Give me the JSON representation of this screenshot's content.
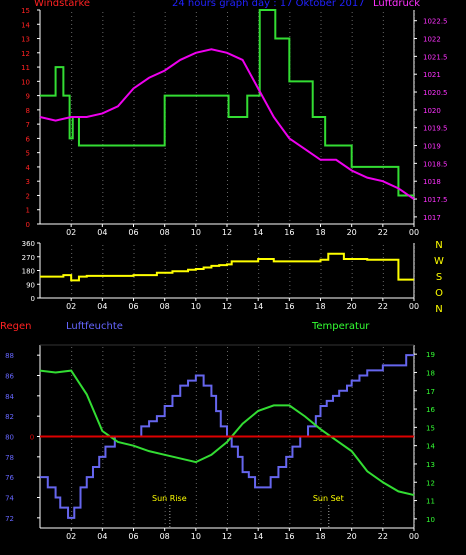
{
  "header": {
    "wind_label": "Windstärke",
    "title": "24 hours graph day : 17 Oktober 2017",
    "pressure_label": "Luftdruck"
  },
  "mid_header": {
    "rain_label": "Regen",
    "humidity_label": "Luftfeuchte",
    "temp_label": "Temperatur"
  },
  "colors": {
    "background": "#000000",
    "axis": "#ffffff",
    "wind_speed": "#33dd33",
    "pressure": "#ee00ee",
    "wind_dir": "#ffff00",
    "humidity": "#6666ee",
    "temperature": "#33dd33",
    "rain": "#dd0000",
    "wind_axis_text": "#ff2222",
    "pressure_axis_text": "#ff33ff",
    "title_text": "#2222ff",
    "direction_text": "#ffff00",
    "humidity_axis_text": "#6666ff",
    "temp_axis_text": "#33ff33"
  },
  "chart_data": [
    {
      "type": "line",
      "title": "24 hours graph day : 17 Oktober 2017",
      "x_ticks": [
        "02",
        "04",
        "06",
        "08",
        "10",
        "12",
        "14",
        "16",
        "18",
        "20",
        "22",
        "00"
      ],
      "xlim": [
        0,
        24
      ],
      "y_left_label": "Windstärke",
      "y_left_ticks": [
        "0",
        "1",
        "2",
        "3",
        "4",
        "5",
        "6",
        "7",
        "8",
        "9",
        "10",
        "11",
        "12",
        "13",
        "14",
        "15"
      ],
      "y_left_lim": [
        0,
        15
      ],
      "y_right_label": "Luftdruck",
      "y_right_ticks": [
        "1017",
        "1017.5",
        "1018",
        "1018.5",
        "1019",
        "1019.5",
        "1020",
        "1020.5",
        "1021",
        "1021.5",
        "1022",
        "1022.5"
      ],
      "y_right_lim": [
        1016.8,
        1022.8
      ],
      "series": [
        {
          "name": "Windstärke",
          "axis": "left",
          "step": true,
          "x": [
            0,
            1,
            1.5,
            1.9,
            2.1,
            2.5,
            7.9,
            8.0,
            10.5,
            10.6,
            12.0,
            12.1,
            13.0,
            13.3,
            14.0,
            14.1,
            15.0,
            15.1,
            15.8,
            16.0,
            17.2,
            17.5,
            18.0,
            18.3,
            20.0,
            21.0,
            22.3,
            23.0,
            24
          ],
          "y": [
            9,
            11,
            9,
            6,
            7.5,
            5.5,
            5.5,
            9,
            9,
            9,
            9,
            7.5,
            7.5,
            9,
            9,
            15,
            15,
            13,
            13,
            10,
            10,
            7.5,
            7.5,
            5.5,
            4,
            4,
            4,
            2,
            2
          ]
        },
        {
          "name": "Luftdruck",
          "axis": "right",
          "x": [
            0,
            1,
            2,
            3,
            4,
            5,
            6,
            7,
            8,
            9,
            10,
            11,
            12,
            13,
            14,
            15,
            16,
            17,
            18,
            19,
            20,
            21,
            22,
            23,
            24
          ],
          "y": [
            1019.8,
            1019.7,
            1019.8,
            1019.8,
            1019.9,
            1020.1,
            1020.6,
            1020.9,
            1021.1,
            1021.4,
            1021.6,
            1021.7,
            1021.6,
            1021.4,
            1020.6,
            1019.8,
            1019.2,
            1018.9,
            1018.6,
            1018.6,
            1018.3,
            1018.1,
            1018.0,
            1017.8,
            1017.5
          ]
        }
      ]
    },
    {
      "type": "line",
      "x_ticks": [
        "02",
        "04",
        "06",
        "08",
        "10",
        "12",
        "14",
        "16",
        "18",
        "20",
        "22",
        "00"
      ],
      "xlim": [
        0,
        24
      ],
      "y_left_ticks": [
        "0",
        "90",
        "180",
        "270",
        "360"
      ],
      "y_left_lim": [
        0,
        360
      ],
      "direction_labels": [
        "N",
        "W",
        "S",
        "O",
        "N"
      ],
      "series": [
        {
          "name": "Wind direction",
          "step": true,
          "x": [
            0,
            1.5,
            2,
            2.5,
            3,
            6,
            7.5,
            8.5,
            9.5,
            10,
            10.5,
            11,
            11.5,
            12,
            12.3,
            13,
            14,
            15,
            16,
            17,
            18,
            18.5,
            19.5,
            21,
            22.5,
            23,
            24
          ],
          "y": [
            140,
            150,
            115,
            140,
            145,
            150,
            165,
            175,
            185,
            190,
            200,
            210,
            215,
            220,
            240,
            240,
            255,
            240,
            240,
            240,
            250,
            290,
            255,
            250,
            250,
            120,
            120
          ]
        }
      ]
    },
    {
      "type": "line",
      "x_ticks": [
        "02",
        "04",
        "06",
        "08",
        "10",
        "12",
        "14",
        "16",
        "18",
        "20",
        "22",
        "00"
      ],
      "xlim": [
        0,
        24
      ],
      "y_left_label": "Luftfeuchte",
      "y_left_ticks": [
        "72",
        "74",
        "76",
        "78",
        "80",
        "82",
        "84",
        "86",
        "88"
      ],
      "y_left_lim": [
        71,
        89
      ],
      "y_right_label": "Temperatur",
      "y_right_ticks": [
        "10",
        "11",
        "12",
        "13",
        "14",
        "15",
        "16",
        "17",
        "18",
        "19"
      ],
      "y_right_lim": [
        9.5,
        19.5
      ],
      "rain_label": "Regen",
      "rain_marker": "0",
      "annotations": [
        {
          "text": "Sun Rise",
          "x": 8.3
        },
        {
          "text": "Sun Set",
          "x": 18.5
        }
      ],
      "series": [
        {
          "name": "Luftfeuchte",
          "axis": "left",
          "step": true,
          "x": [
            0,
            0.5,
            1.0,
            1.3,
            1.8,
            2.2,
            2.6,
            3.0,
            3.4,
            3.8,
            4.2,
            4.8,
            5.5,
            6.5,
            7.0,
            7.5,
            8.0,
            8.5,
            9.0,
            9.5,
            10.0,
            10.5,
            11.0,
            11.3,
            11.6,
            12.0,
            12.3,
            12.7,
            13.0,
            13.4,
            13.8,
            14.3,
            14.8,
            15.3,
            15.8,
            16.2,
            16.7,
            17.2,
            17.7,
            18.0,
            18.4,
            18.8,
            19.2,
            19.7,
            20.0,
            20.5,
            21.0,
            22.0,
            23.0,
            23.5,
            24
          ],
          "y": [
            76,
            75,
            74,
            73,
            72,
            73,
            75,
            76,
            77,
            78,
            79,
            80,
            80,
            81,
            81.5,
            82,
            83,
            84,
            85,
            85.5,
            86,
            85,
            84,
            82.5,
            81,
            80,
            79,
            78,
            76.5,
            76,
            75,
            75,
            76,
            77,
            78,
            79,
            80,
            81,
            82,
            83,
            83.5,
            84,
            84.5,
            85,
            85.5,
            86,
            86.5,
            87,
            87,
            88,
            88
          ]
        },
        {
          "name": "Temperatur",
          "axis": "right",
          "x": [
            0,
            1,
            2,
            3,
            4,
            5,
            6,
            7,
            8,
            9,
            10,
            11,
            12,
            13,
            14,
            15,
            16,
            17,
            18,
            19,
            20,
            21,
            22,
            23,
            24
          ],
          "y": [
            18.1,
            18.0,
            18.1,
            16.8,
            14.8,
            14.2,
            14.0,
            13.7,
            13.5,
            13.3,
            13.1,
            13.5,
            14.2,
            15.2,
            15.9,
            16.2,
            16.2,
            15.6,
            14.9,
            14.3,
            13.7,
            12.6,
            12.0,
            11.5,
            11.3
          ]
        },
        {
          "name": "Regen",
          "axis": "left",
          "x": [
            0,
            24
          ],
          "y": [
            80,
            80
          ]
        }
      ]
    }
  ]
}
